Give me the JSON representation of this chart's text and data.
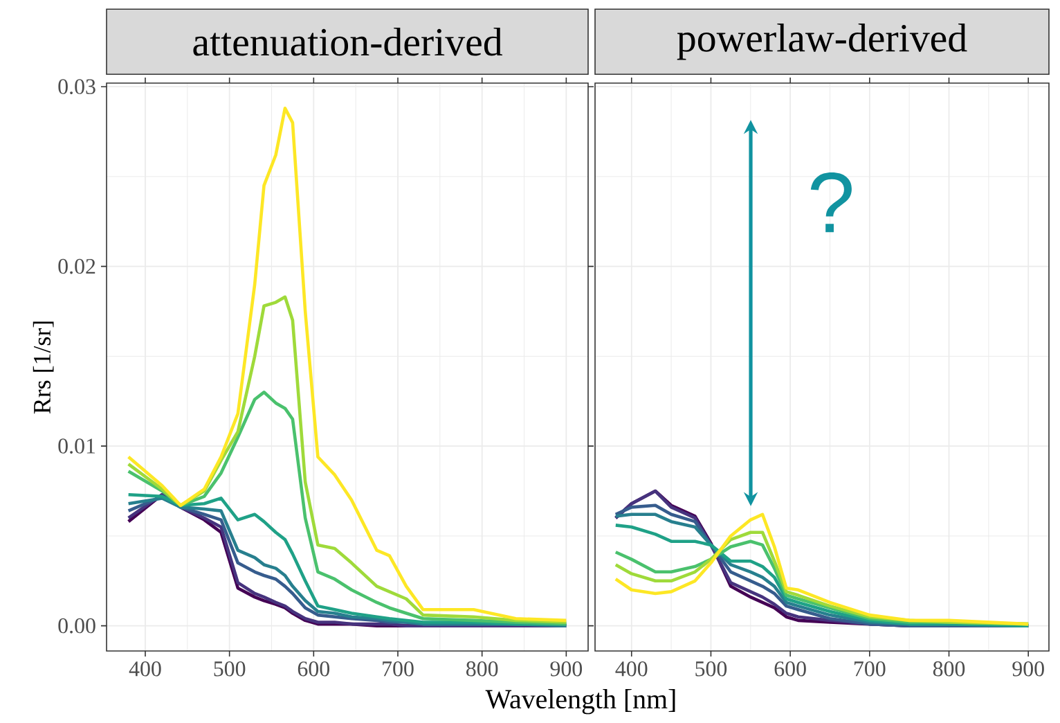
{
  "chart_data": [
    {
      "type": "line",
      "title": "attenuation-derived",
      "ylabel": "Rrs [1/sr]",
      "xlabel": "Wavelength [nm]",
      "grid": true,
      "tick_labels": "xy",
      "xlim": [
        354,
        926
      ],
      "ylim": [
        -0.0014,
        0.0302
      ],
      "xticks": [
        400,
        500,
        600,
        700,
        800,
        900
      ],
      "yticks": [
        {
          "value": 0,
          "label": "0.00"
        },
        {
          "value": 0.01,
          "label": "0.01"
        },
        {
          "value": 0.02,
          "label": "0.02"
        },
        {
          "value": 0.03,
          "label": "0.03"
        }
      ],
      "x": [
        380,
        420,
        442,
        470,
        490,
        510,
        530,
        541,
        555,
        566,
        575,
        590,
        605,
        625,
        645,
        675,
        690,
        710,
        730,
        790,
        840,
        900
      ],
      "series": [
        {
          "color": "#440154",
          "values": [
            0.0058,
            0.0073,
            0.0066,
            0.0059,
            0.0052,
            0.0021,
            0.0016,
            0.0014,
            0.0012,
            0.001,
            0.0007,
            0.0003,
            0.0001,
            0.0001,
            0.0001,
            0,
            0,
            0,
            0,
            null,
            null,
            null
          ]
        },
        {
          "color": "#46337e",
          "values": [
            0.006,
            0.0073,
            0.0066,
            0.006,
            0.0055,
            0.0024,
            0.0018,
            0.0016,
            0.0013,
            0.0011,
            0.0008,
            0.0004,
            0.0002,
            0.0002,
            0.0001,
            0.0001,
            0.0001,
            0,
            0,
            0,
            0,
            0
          ]
        },
        {
          "color": "#365c8d",
          "values": [
            0.0064,
            0.0072,
            0.0066,
            0.0062,
            0.0059,
            0.0035,
            0.003,
            0.0028,
            0.0026,
            0.0022,
            0.0018,
            0.001,
            0.0006,
            0.0005,
            0.0004,
            0.0003,
            0.0002,
            0.0002,
            0.0001,
            0.0001,
            0.0001,
            0
          ]
        },
        {
          "color": "#277f8e",
          "values": [
            0.0068,
            0.0071,
            0.0066,
            0.0065,
            0.0064,
            0.0042,
            0.0038,
            0.0034,
            0.0032,
            0.0028,
            0.0022,
            0.0014,
            0.0008,
            0.0007,
            0.0005,
            0.0004,
            0.0003,
            0.0002,
            0.0001,
            0.0001,
            0.0001,
            0
          ]
        },
        {
          "color": "#1fa187",
          "values": [
            0.0073,
            0.0072,
            0.0067,
            0.0068,
            0.0071,
            0.0059,
            0.0062,
            0.0058,
            0.0052,
            0.0048,
            0.004,
            0.0025,
            0.0011,
            0.0009,
            0.0007,
            0.0005,
            0.0004,
            0.0003,
            0.0002,
            0.0002,
            0.0001,
            0.0001
          ]
        },
        {
          "color": "#4ac16d",
          "values": [
            0.0086,
            0.0075,
            0.0067,
            0.0072,
            0.0085,
            0.0105,
            0.0126,
            0.013,
            0.0124,
            0.0121,
            0.0115,
            0.006,
            0.003,
            0.0026,
            0.002,
            0.0013,
            0.001,
            0.0007,
            0.0004,
            0.0003,
            0.0002,
            0.0001
          ]
        },
        {
          "color": "#9fda3a",
          "values": [
            0.009,
            0.0076,
            0.0067,
            0.0075,
            0.0092,
            0.0108,
            0.015,
            0.0178,
            0.018,
            0.0183,
            0.017,
            0.008,
            0.0045,
            0.0043,
            0.0035,
            0.0022,
            0.0019,
            0.0015,
            0.0006,
            0.0005,
            0.0003,
            0.0002
          ]
        },
        {
          "color": "#fde725",
          "values": [
            0.0094,
            0.0078,
            0.0067,
            0.0076,
            0.0094,
            0.0118,
            0.019,
            0.0245,
            0.0262,
            0.0288,
            0.028,
            0.0175,
            0.0094,
            0.0084,
            0.007,
            0.0042,
            0.0039,
            0.0022,
            0.0009,
            0.0009,
            0.0004,
            0.0003
          ]
        }
      ]
    },
    {
      "type": "line",
      "title": "powerlaw-derived",
      "grid": true,
      "tick_labels": "x",
      "annotations": [
        "?"
      ],
      "xlim": [
        354,
        926
      ],
      "ylim": [
        -0.0014,
        0.0302
      ],
      "xticks": [
        400,
        500,
        600,
        700,
        800,
        900
      ],
      "yticks": [
        0,
        0.01,
        0.02,
        0.03
      ],
      "x": [
        380,
        400,
        430,
        450,
        480,
        500,
        525,
        550,
        565,
        580,
        595,
        610,
        650,
        700,
        750,
        800,
        900
      ],
      "series": [
        {
          "color": "#440154",
          "values": [
            0.006,
            0.0068,
            0.0075,
            0.0067,
            0.0061,
            0.0046,
            0.0022,
            0.0016,
            0.0013,
            0.001,
            0.0005,
            0.0003,
            0.0002,
            0.0001,
            0,
            0,
            0
          ]
        },
        {
          "color": "#46337e",
          "values": [
            0.006,
            0.0068,
            0.0075,
            0.0066,
            0.006,
            0.0045,
            0.0024,
            0.0019,
            0.0016,
            0.0012,
            0.0007,
            0.0005,
            0.0003,
            0.0001,
            0,
            0,
            0
          ]
        },
        {
          "color": "#365c8d",
          "values": [
            0.0062,
            0.0066,
            0.0067,
            0.0062,
            0.0058,
            0.0045,
            0.003,
            0.0025,
            0.0022,
            0.0018,
            0.0011,
            0.0009,
            0.0004,
            0.0001,
            0,
            0,
            0
          ]
        },
        {
          "color": "#277f8e",
          "values": [
            0.0061,
            0.0062,
            0.0062,
            0.0058,
            0.0055,
            0.0045,
            0.0034,
            0.003,
            0.0027,
            0.0022,
            0.0013,
            0.0011,
            0.0006,
            0.0002,
            0.0001,
            0.0001,
            0
          ]
        },
        {
          "color": "#1fa187",
          "values": [
            0.0056,
            0.0055,
            0.0051,
            0.0047,
            0.0047,
            0.0045,
            0.0036,
            0.0036,
            0.0033,
            0.0027,
            0.0015,
            0.0013,
            0.0008,
            0.0003,
            0.0001,
            0.0001,
            0
          ]
        },
        {
          "color": "#4ac16d",
          "values": [
            0.0041,
            0.0037,
            0.003,
            0.003,
            0.0033,
            0.0037,
            0.0044,
            0.0047,
            0.0045,
            0.0032,
            0.0017,
            0.0015,
            0.001,
            0.0004,
            0.0002,
            0.0002,
            0.0001
          ]
        },
        {
          "color": "#9fda3a",
          "values": [
            0.0034,
            0.0029,
            0.0025,
            0.0025,
            0.003,
            0.0037,
            0.0048,
            0.0052,
            0.0052,
            0.0036,
            0.0019,
            0.0017,
            0.0011,
            0.0005,
            0.0003,
            0.0002,
            0.0001
          ]
        },
        {
          "color": "#fde725",
          "values": [
            0.0026,
            0.002,
            0.0018,
            0.0019,
            0.0025,
            0.0035,
            0.005,
            0.0059,
            0.0062,
            0.0044,
            0.0021,
            0.002,
            0.0013,
            0.0006,
            0.0003,
            0.0003,
            0.0001
          ]
        }
      ]
    }
  ]
}
